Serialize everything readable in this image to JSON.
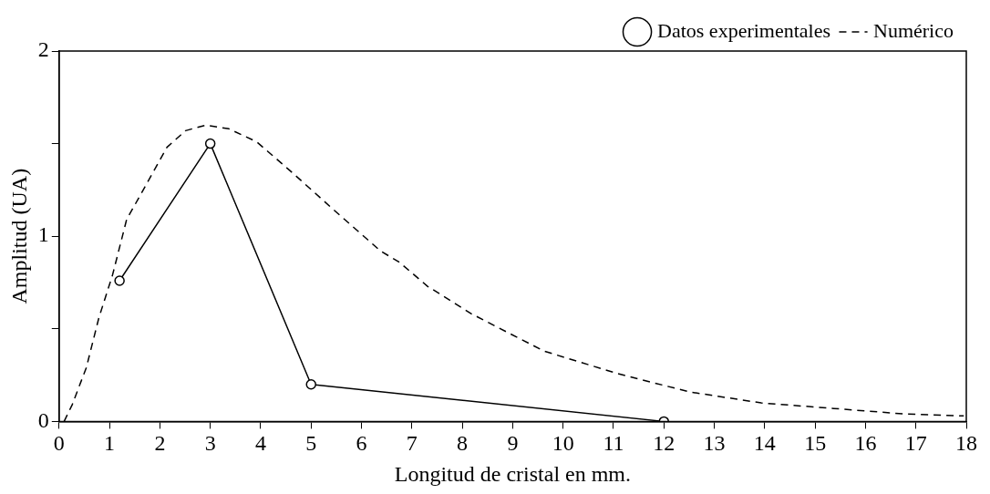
{
  "chart_data": {
    "type": "line",
    "xlabel": "Longitud de cristal en mm.",
    "ylabel": "Amplitud (UA)",
    "xlim": [
      0,
      18
    ],
    "xticks": [
      0,
      1,
      2,
      3,
      4,
      5,
      6,
      7,
      8,
      9,
      10,
      11,
      12,
      13,
      14,
      15,
      16,
      17,
      18
    ],
    "ylim": [
      0,
      2
    ],
    "yticks": [
      0,
      {
        "value": 0.5,
        "label": null
      },
      1,
      {
        "value": 1.5,
        "label": null
      },
      2
    ],
    "grid": false,
    "legend": "top right",
    "series": [
      {
        "name": "Datos experimentales",
        "color": "#000000",
        "marker": "circle",
        "line_style": "solid",
        "x": [
          1.2,
          3,
          5,
          12
        ],
        "values": [
          0.76,
          1.5,
          0.2,
          0
        ]
      },
      {
        "name": "Numérico",
        "color": "#000000",
        "marker": "none",
        "line_style": "dashed",
        "x": [
          0.1,
          0.26,
          0.54,
          0.79,
          1.06,
          1.34,
          1.71,
          2.14,
          2.51,
          2.91,
          3.37,
          3.92,
          4.6,
          5.46,
          6.38,
          6.75,
          7.31,
          8.19,
          9.62,
          11.06,
          12.5,
          13.93,
          15.37,
          16.8,
          17.95
        ],
        "values": [
          0,
          0.09,
          0.29,
          0.56,
          0.79,
          1.09,
          1.27,
          1.48,
          1.57,
          1.6,
          1.58,
          1.51,
          1.35,
          1.14,
          0.92,
          0.86,
          0.73,
          0.58,
          0.38,
          0.26,
          0.16,
          0.1,
          0.07,
          0.04,
          0.03
        ]
      }
    ]
  }
}
